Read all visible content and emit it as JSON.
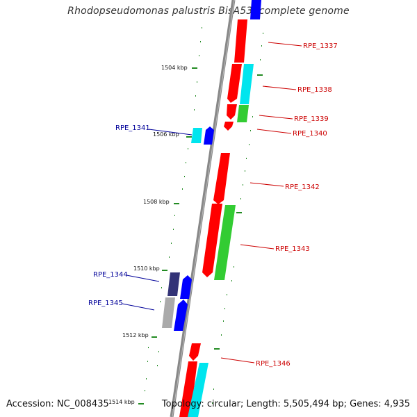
{
  "title": "Rhodopseudomonas palustris BisA53, complete genome",
  "footer": {
    "accession": "Accession: NC_008435",
    "summary": "Topology: circular; Length: 5,505,494 bp; Genes: 4,935"
  },
  "colors": {
    "backbone": "#888888",
    "tick": "#228B22",
    "forward_label": "#cc0000",
    "reverse_label": "#000099",
    "cds_forward": "#ff0000",
    "cds_reverse": "#0000ff",
    "cog_cyan": "#00e5ee",
    "cog_green": "#33cc33",
    "cog_navy": "#333377",
    "cog_gray": "#aaaaaa"
  },
  "scale_labels": [
    "1504 kbp",
    "1506 kbp",
    "1508 kbp",
    "1510 kbp",
    "1512 kbp",
    "1514 kbp"
  ],
  "genes": {
    "forward": [
      "RPE_1337",
      "RPE_1338",
      "RPE_1339",
      "RPE_1340",
      "RPE_1342",
      "RPE_1343",
      "RPE_1346"
    ],
    "reverse": [
      "RPE_1341",
      "RPE_1344",
      "RPE_1345"
    ]
  }
}
